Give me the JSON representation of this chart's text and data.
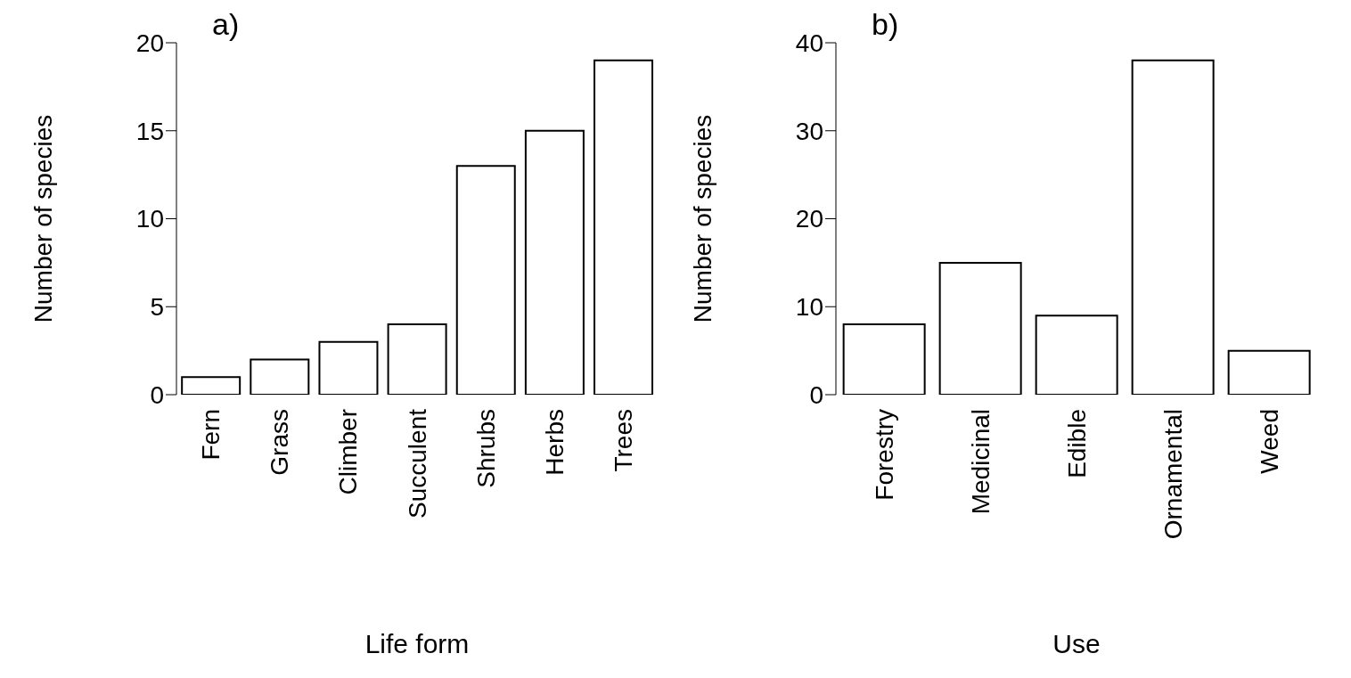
{
  "chart_data": [
    {
      "type": "bar",
      "title": "a)",
      "xlabel": "Life form",
      "ylabel": "Number of species",
      "categories": [
        "Fern",
        "Grass",
        "Climber",
        "Succulent",
        "Shrubs",
        "Herbs",
        "Trees"
      ],
      "values": [
        1,
        2,
        3,
        4,
        13,
        15,
        19
      ],
      "color": "#ffffff",
      "ylim": [
        0,
        20
      ],
      "yticks": [
        0,
        5,
        10,
        15,
        20
      ],
      "grid": false,
      "legend": false
    },
    {
      "type": "bar",
      "title": "b)",
      "xlabel": "Use",
      "ylabel": "Number of species",
      "categories": [
        "Forestry",
        "Medicinal",
        "Edible",
        "Ornamental",
        "Weed"
      ],
      "values": [
        8,
        15,
        9,
        38,
        5
      ],
      "color": "#ffffff",
      "ylim": [
        0,
        40
      ],
      "yticks": [
        0,
        10,
        20,
        30,
        40
      ],
      "grid": false,
      "legend": false
    }
  ]
}
